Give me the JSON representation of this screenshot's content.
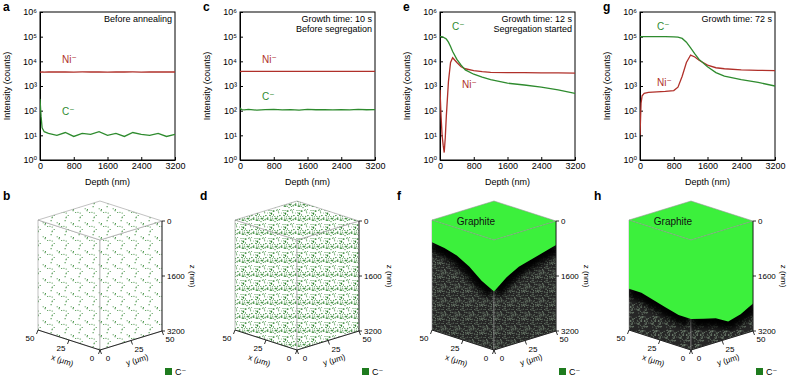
{
  "chart_data": [
    {
      "type": "line",
      "title": "a",
      "annotations": [
        "Before annealing"
      ],
      "xlabel": "Depth (nm)",
      "ylabel": "Intensity (counts)",
      "log": "y",
      "xlim": [
        0,
        3200
      ],
      "xticks": [
        0,
        800,
        1600,
        2400,
        3200
      ],
      "ylim": [
        1,
        1000000
      ],
      "yticks": [
        {
          "value": 1,
          "label": "10⁰"
        },
        {
          "value": 10,
          "label": "10¹"
        },
        {
          "value": 100,
          "label": "10²"
        },
        {
          "value": 1000,
          "label": "10³"
        },
        {
          "value": 10000,
          "label": "10⁴"
        },
        {
          "value": 100000,
          "label": "10⁵"
        },
        {
          "value": 1000000,
          "label": "10⁶"
        }
      ],
      "x": [
        0,
        25,
        50,
        100,
        200,
        400,
        600,
        800,
        1000,
        1200,
        1400,
        1600,
        1800,
        2000,
        2200,
        2400,
        2600,
        2800,
        3000,
        3200
      ],
      "series": [
        {
          "name": "Ni⁻",
          "color": "#b0302a",
          "values": [
            3700,
            3650,
            3700,
            3680,
            3720,
            3690,
            3700,
            3670,
            3710,
            3690,
            3700,
            3680,
            3700,
            3690,
            3710,
            3680,
            3700,
            3690,
            3700,
            3690
          ]
        },
        {
          "name": "C⁻",
          "color": "#2e8b2e",
          "values": [
            300,
            60,
            20,
            14,
            12,
            10,
            13,
            9,
            12,
            11,
            14,
            10,
            12,
            9,
            13,
            11,
            10,
            12,
            9,
            11
          ]
        }
      ]
    },
    {
      "type": "line",
      "title": "c",
      "annotations": [
        "Growth time: 10 s",
        "Before segregation"
      ],
      "xlabel": "Depth (nm)",
      "ylabel": "Intensity (counts)",
      "log": "y",
      "xlim": [
        0,
        3200
      ],
      "xticks": [
        0,
        800,
        1600,
        2400,
        3200
      ],
      "ylim": [
        1,
        1000000
      ],
      "yticks": [
        {
          "value": 1,
          "label": "10⁰"
        },
        {
          "value": 10,
          "label": "10¹"
        },
        {
          "value": 100,
          "label": "10²"
        },
        {
          "value": 1000,
          "label": "10³"
        },
        {
          "value": 10000,
          "label": "10⁴"
        },
        {
          "value": 100000,
          "label": "10⁵"
        },
        {
          "value": 1000000,
          "label": "10⁶"
        }
      ],
      "x": [
        0,
        25,
        50,
        100,
        200,
        400,
        600,
        800,
        1000,
        1200,
        1400,
        1600,
        1800,
        2000,
        2200,
        2400,
        2600,
        2800,
        3000,
        3200
      ],
      "series": [
        {
          "name": "Ni⁻",
          "color": "#b0302a",
          "values": [
            3900,
            3880,
            3900,
            3890,
            3910,
            3900,
            3890,
            3900,
            3910,
            3890,
            3900,
            3880,
            3900,
            3910,
            3890,
            3900,
            3890,
            3900,
            3910,
            3900
          ]
        },
        {
          "name": "C⁻",
          "color": "#2e8b2e",
          "values": [
            130,
            115,
            110,
            108,
            112,
            105,
            110,
            112,
            108,
            110,
            106,
            112,
            109,
            111,
            107,
            110,
            108,
            112,
            109,
            110
          ]
        }
      ]
    },
    {
      "type": "line",
      "title": "e",
      "annotations": [
        "Growth time: 12 s",
        "Segregation started"
      ],
      "xlabel": "Depth (nm)",
      "ylabel": "Intensity (counts)",
      "log": "y",
      "xlim": [
        0,
        3200
      ],
      "xticks": [
        0,
        800,
        1600,
        2400,
        3200
      ],
      "ylim": [
        1,
        1000000
      ],
      "yticks": [
        {
          "value": 1,
          "label": "10⁰"
        },
        {
          "value": 10,
          "label": "10¹"
        },
        {
          "value": 100,
          "label": "10²"
        },
        {
          "value": 1000,
          "label": "10³"
        },
        {
          "value": 10000,
          "label": "10⁴"
        },
        {
          "value": 100000,
          "label": "10⁵"
        },
        {
          "value": 1000000,
          "label": "10⁶"
        }
      ],
      "x": [
        0,
        25,
        50,
        75,
        100,
        125,
        150,
        200,
        250,
        300,
        400,
        500,
        600,
        800,
        1000,
        1200,
        1600,
        2000,
        2400,
        2800,
        3200
      ],
      "series": [
        {
          "name": "Ni⁻",
          "color": "#b0302a",
          "values": [
            700,
            60,
            10,
            4,
            2,
            8,
            60,
            1500,
            9000,
            14000,
            9000,
            6000,
            5000,
            4200,
            3800,
            3600,
            3500,
            3500,
            3400,
            3400,
            3300
          ]
        },
        {
          "name": "C⁻",
          "color": "#2e8b2e",
          "values": [
            100000,
            100000,
            98000,
            95000,
            90000,
            85000,
            80000,
            60000,
            40000,
            25000,
            12000,
            7000,
            4500,
            3000,
            2300,
            1800,
            1300,
            1100,
            900,
            700,
            500
          ]
        }
      ]
    },
    {
      "type": "line",
      "title": "g",
      "annotations": [
        "Growth time: 72 s"
      ],
      "xlabel": "Depth (nm)",
      "ylabel": "Intensity (counts)",
      "log": "y",
      "xlim": [
        0,
        3200
      ],
      "xticks": [
        0,
        800,
        1600,
        2400,
        3200
      ],
      "ylim": [
        1,
        1000000
      ],
      "yticks": [
        {
          "value": 1,
          "label": "10⁰"
        },
        {
          "value": 10,
          "label": "10¹"
        },
        {
          "value": 100,
          "label": "10²"
        },
        {
          "value": 1000,
          "label": "10³"
        },
        {
          "value": 10000,
          "label": "10⁴"
        },
        {
          "value": 100000,
          "label": "10⁵"
        },
        {
          "value": 1000000,
          "label": "10⁶"
        }
      ],
      "x": [
        0,
        25,
        50,
        100,
        200,
        400,
        600,
        800,
        900,
        1000,
        1100,
        1200,
        1300,
        1400,
        1600,
        1800,
        2000,
        2400,
        2800,
        3200
      ],
      "series": [
        {
          "name": "Ni⁻",
          "color": "#b0302a",
          "values": [
            10,
            200,
            400,
            500,
            550,
            580,
            600,
            650,
            900,
            2500,
            9000,
            18000,
            15000,
            11000,
            7000,
            5500,
            5000,
            4500,
            4300,
            4200
          ]
        },
        {
          "name": "C⁻",
          "color": "#2e8b2e",
          "values": [
            100000,
            100000,
            100000,
            100000,
            100000,
            100000,
            100000,
            98000,
            95000,
            85000,
            60000,
            35000,
            20000,
            12000,
            6000,
            3500,
            2500,
            1800,
            1400,
            1000
          ]
        }
      ]
    },
    {
      "type": "volume",
      "title": "b",
      "xlabel": "x (μm)",
      "ylabel": "y (μm)",
      "zlabel": "z (nm)",
      "xlim": [
        0,
        50
      ],
      "xticks": [
        0,
        25,
        50
      ],
      "ylim": [
        0,
        50
      ],
      "yticks": [
        0,
        25,
        50
      ],
      "zlim": [
        0,
        3200
      ],
      "zticks": [
        0,
        1600,
        3200
      ],
      "legend": "lower right",
      "series": [
        {
          "name": "C⁻",
          "color": "#1e7b1e"
        }
      ]
    },
    {
      "type": "volume",
      "title": "d",
      "xlabel": "x (μm)",
      "ylabel": "y (μm)",
      "zlabel": "z (nm)",
      "xlim": [
        0,
        50
      ],
      "xticks": [
        0,
        25,
        50
      ],
      "ylim": [
        0,
        50
      ],
      "yticks": [
        0,
        25,
        50
      ],
      "zlim": [
        0,
        3200
      ],
      "zticks": [
        0,
        1600,
        3200
      ],
      "legend": "lower right",
      "series": [
        {
          "name": "C⁻",
          "color": "#1e7b1e"
        }
      ]
    },
    {
      "type": "volume",
      "title": "f",
      "annotations": [
        "Graphite"
      ],
      "xlabel": "x (μm)",
      "ylabel": "y (μm)",
      "zlabel": "z (nm)",
      "xlim": [
        0,
        50
      ],
      "xticks": [
        0,
        25,
        50
      ],
      "ylim": [
        0,
        50
      ],
      "yticks": [
        0,
        25,
        50
      ],
      "zlim": [
        0,
        3200
      ],
      "zticks": [
        0,
        1600,
        3200
      ],
      "legend": "lower right",
      "series": [
        {
          "name": "C⁻",
          "color": "#1e7b1e"
        }
      ],
      "graphite_front_xz": {
        "x": [
          0,
          10,
          20,
          30,
          40,
          50
        ],
        "z": [
          1500,
          1300,
          1000,
          800,
          700,
          650
        ]
      },
      "graphite_front_yz": {
        "y": [
          0,
          10,
          20,
          30,
          40,
          50
        ],
        "z": [
          1500,
          1200,
          1000,
          900,
          800,
          700
        ]
      }
    },
    {
      "type": "volume",
      "title": "h",
      "annotations": [
        "Graphite"
      ],
      "xlabel": "x (μm)",
      "ylabel": "y (μm)",
      "zlabel": "z (nm)",
      "xlim": [
        0,
        50
      ],
      "xticks": [
        0,
        25,
        50
      ],
      "ylim": [
        0,
        50
      ],
      "yticks": [
        0,
        25,
        50
      ],
      "zlim": [
        0,
        3200
      ],
      "zticks": [
        0,
        1600,
        3200
      ],
      "legend": "lower right",
      "series": [
        {
          "name": "C⁻",
          "color": "#1e7b1e"
        }
      ],
      "graphite_front_xz": {
        "x": [
          0,
          10,
          20,
          30,
          40,
          50
        ],
        "z": [
          2300,
          2300,
          2200,
          2100,
          2000,
          2000
        ]
      },
      "graphite_front_yz": {
        "y": [
          0,
          10,
          20,
          30,
          40,
          50
        ],
        "z": [
          2300,
          2400,
          2500,
          2700,
          2600,
          2400
        ]
      }
    }
  ]
}
